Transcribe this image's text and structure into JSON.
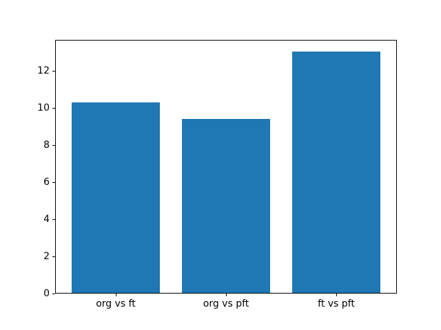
{
  "figure": {
    "background": "#ffffff",
    "axis_color": "#000000"
  },
  "chart_data": {
    "type": "bar",
    "categories": [
      "org vs ft",
      "org vs pft",
      "ft vs pft"
    ],
    "values": [
      10.25,
      9.35,
      13.0
    ],
    "bar_color": "#1f77b4",
    "yticks": [
      0,
      2,
      4,
      6,
      8,
      10,
      12
    ],
    "ylim": [
      0,
      13.65
    ],
    "xlim": [
      -0.55,
      2.55
    ],
    "bar_width": 0.8,
    "grid": false,
    "legend": false
  }
}
